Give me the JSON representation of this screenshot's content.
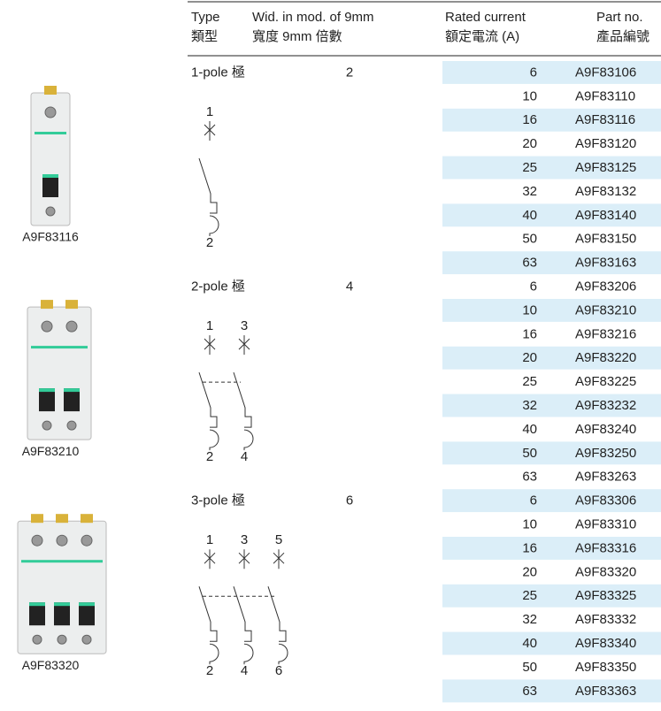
{
  "header": {
    "columns": [
      {
        "en": "Type",
        "zh": "類型"
      },
      {
        "en": "Wid. in mod. of 9mm",
        "zh": "寬度 9mm 倍數"
      },
      {
        "en": "Rated current",
        "zh": "額定電流 (A)"
      },
      {
        "en": "Part no.",
        "zh": "產品編號"
      }
    ]
  },
  "groups": [
    {
      "type": "1-pole 極",
      "width": "2",
      "image_label": "A9F83116",
      "poles": [
        {
          "top": "1",
          "bottom": "2"
        }
      ],
      "rows": [
        [
          "6",
          "A9F83106"
        ],
        [
          "10",
          "A9F83110"
        ],
        [
          "16",
          "A9F83116"
        ],
        [
          "20",
          "A9F83120"
        ],
        [
          "25",
          "A9F83125"
        ],
        [
          "32",
          "A9F83132"
        ],
        [
          "40",
          "A9F83140"
        ],
        [
          "50",
          "A9F83150"
        ],
        [
          "63",
          "A9F83163"
        ]
      ]
    },
    {
      "type": "2-pole 極",
      "width": "4",
      "image_label": "A9F83210",
      "poles": [
        {
          "top": "1",
          "bottom": "2"
        },
        {
          "top": "3",
          "bottom": "4"
        }
      ],
      "rows": [
        [
          "6",
          "A9F83206"
        ],
        [
          "10",
          "A9F83210"
        ],
        [
          "16",
          "A9F83216"
        ],
        [
          "20",
          "A9F83220"
        ],
        [
          "25",
          "A9F83225"
        ],
        [
          "32",
          "A9F83232"
        ],
        [
          "40",
          "A9F83240"
        ],
        [
          "50",
          "A9F83250"
        ],
        [
          "63",
          "A9F83263"
        ]
      ]
    },
    {
      "type": "3-pole 極",
      "width": "6",
      "image_label": "A9F83320",
      "poles": [
        {
          "top": "1",
          "bottom": "2"
        },
        {
          "top": "3",
          "bottom": "4"
        },
        {
          "top": "5",
          "bottom": "6"
        }
      ],
      "rows": [
        [
          "6",
          "A9F83306"
        ],
        [
          "10",
          "A9F83310"
        ],
        [
          "16",
          "A9F83316"
        ],
        [
          "20",
          "A9F83320"
        ],
        [
          "25",
          "A9F83325"
        ],
        [
          "32",
          "A9F83332"
        ],
        [
          "40",
          "A9F83340"
        ],
        [
          "50",
          "A9F83350"
        ],
        [
          "63",
          "A9F83363"
        ]
      ]
    }
  ]
}
